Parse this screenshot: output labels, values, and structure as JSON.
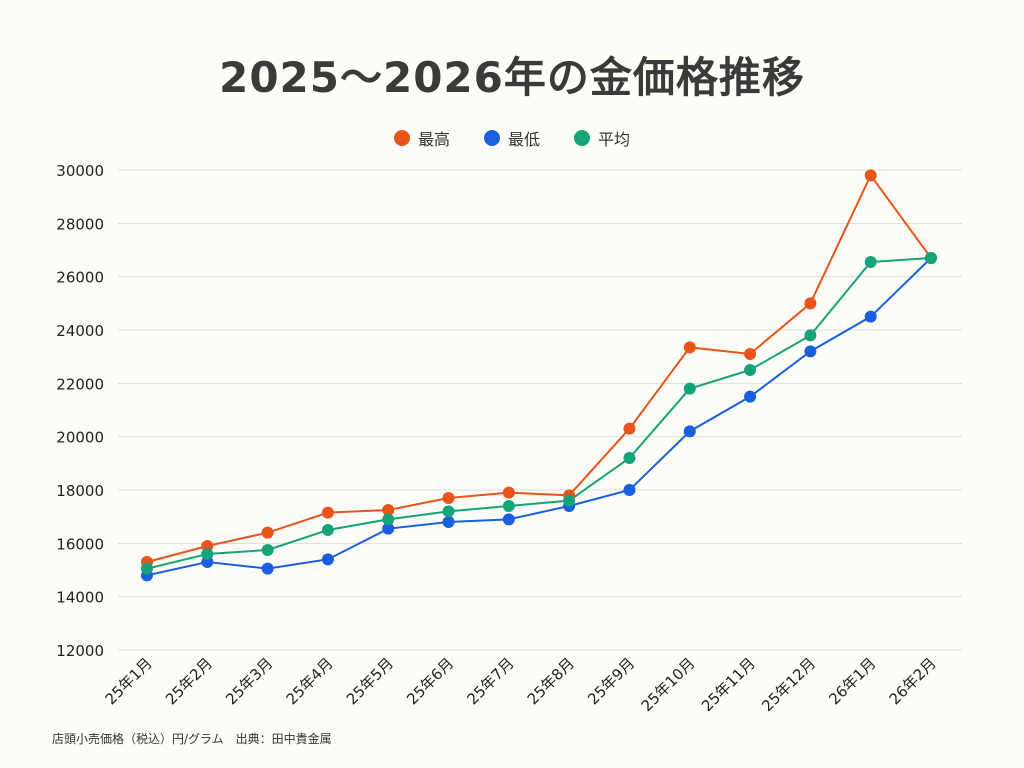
{
  "chart_data": {
    "type": "line",
    "title": "2025〜2026年の金価格推移",
    "categories": [
      "25年1月",
      "25年2月",
      "25年3月",
      "25年4月",
      "25年5月",
      "25年6月",
      "25年7月",
      "25年8月",
      "25年9月",
      "25年10月",
      "25年11月",
      "25年12月",
      "26年1月",
      "26年2月"
    ],
    "series": [
      {
        "name": "最高",
        "color": "#e8541a",
        "values": [
          15300,
          15900,
          16400,
          17150,
          17250,
          17700,
          17900,
          17800,
          20300,
          23350,
          23100,
          25000,
          29800,
          26700
        ]
      },
      {
        "name": "最低",
        "color": "#1a5fe0",
        "values": [
          14800,
          15300,
          15050,
          15400,
          16550,
          16800,
          16900,
          17400,
          18000,
          20200,
          21500,
          23200,
          24500,
          26700
        ]
      },
      {
        "name": "平均",
        "color": "#16a37a",
        "values": [
          15050,
          15600,
          15750,
          16500,
          16900,
          17200,
          17400,
          17600,
          19200,
          21800,
          22500,
          23800,
          26550,
          26700
        ]
      }
    ],
    "ylim": [
      12000,
      30000
    ],
    "yticks": [
      12000,
      14000,
      16000,
      18000,
      20000,
      22000,
      24000,
      26000,
      28000,
      30000
    ],
    "grid": true,
    "legend_position": "top-center",
    "source_note": "店頭小売価格（税込）円/グラム　出典：田中貴金属"
  }
}
